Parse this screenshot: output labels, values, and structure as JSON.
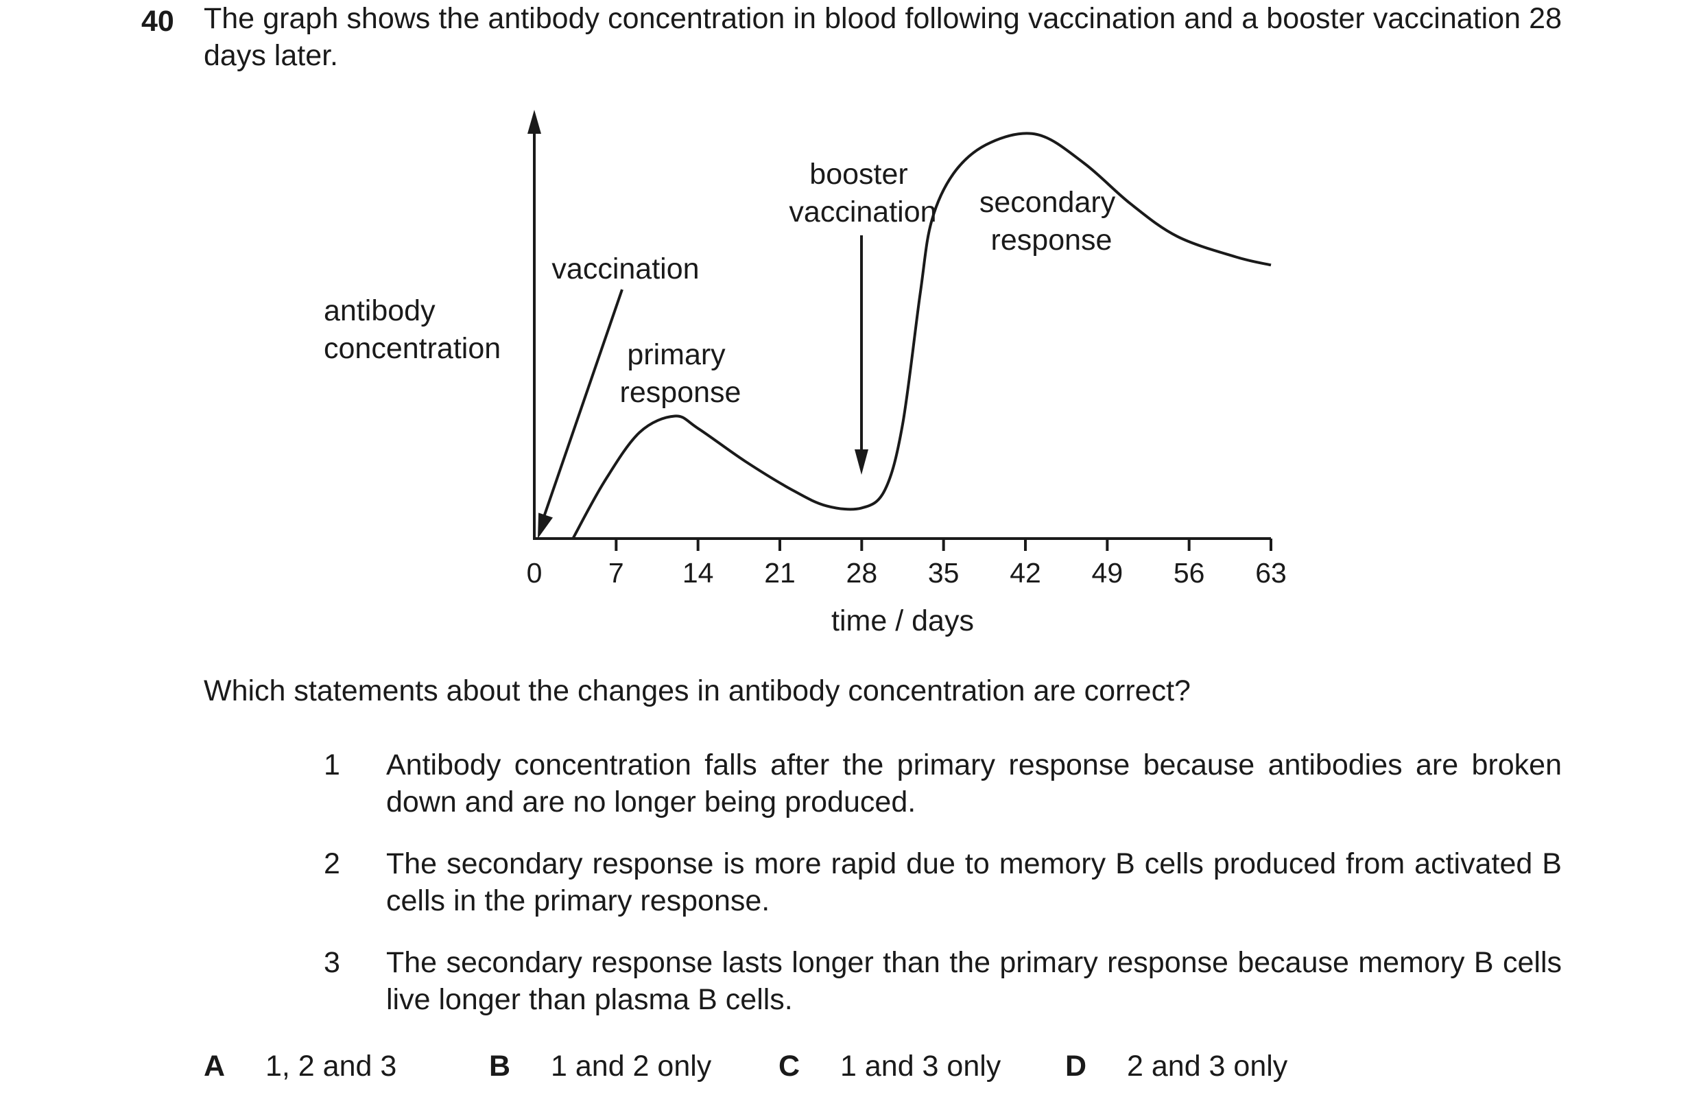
{
  "question": {
    "number": "40",
    "intro": "The graph shows the antibody concentration in blood following vaccination and a booster vaccination 28 days later.",
    "prompt": "Which statements about the changes in antibody concentration are correct?",
    "statements": [
      {
        "number": "1",
        "text": "Antibody concentration falls after the primary response because antibodies are broken down and are no longer being produced."
      },
      {
        "number": "2",
        "text": "The secondary response is more rapid due to memory B cells produced from activated B cells in the primary response."
      },
      {
        "number": "3",
        "text": "The secondary response lasts longer than the primary response because memory B cells live longer than plasma B cells."
      }
    ],
    "options": [
      {
        "letter": "A",
        "text": "1, 2 and 3"
      },
      {
        "letter": "B",
        "text": "1 and 2 only"
      },
      {
        "letter": "C",
        "text": "1 and 3 only"
      },
      {
        "letter": "D",
        "text": "2 and 3 only"
      }
    ]
  },
  "chart_data": {
    "type": "line",
    "title": "",
    "xlabel": "time / days",
    "ylabel": "antibody concentration",
    "xlim": [
      0,
      63
    ],
    "ylim": [
      0,
      1
    ],
    "x_ticks": [
      0,
      7,
      14,
      21,
      28,
      35,
      42,
      49,
      56,
      63
    ],
    "y_ticks": [],
    "grid": false,
    "series": [
      {
        "name": "",
        "points": [
          [
            3.3,
            0.0
          ],
          [
            6,
            0.14
          ],
          [
            9,
            0.26
          ],
          [
            12,
            0.3
          ],
          [
            14,
            0.27
          ],
          [
            18,
            0.19
          ],
          [
            22,
            0.12
          ],
          [
            25,
            0.08
          ],
          [
            28,
            0.075
          ],
          [
            30,
            0.12
          ],
          [
            31.5,
            0.28
          ],
          [
            33,
            0.6
          ],
          [
            34,
            0.78
          ],
          [
            36,
            0.9
          ],
          [
            39,
            0.97
          ],
          [
            43,
            0.99
          ],
          [
            47,
            0.92
          ],
          [
            51,
            0.82
          ],
          [
            55,
            0.74
          ],
          [
            60,
            0.69
          ],
          [
            63,
            0.67
          ]
        ]
      }
    ],
    "annotations": [
      {
        "text": "vaccination",
        "arrow_to_x": 0,
        "arrow_to_y": 0
      },
      {
        "text": "booster vaccination",
        "arrow_to_x": 28,
        "arrow_to_y": 0.15
      },
      {
        "text": "primary response"
      },
      {
        "text": "secondary response"
      }
    ]
  }
}
